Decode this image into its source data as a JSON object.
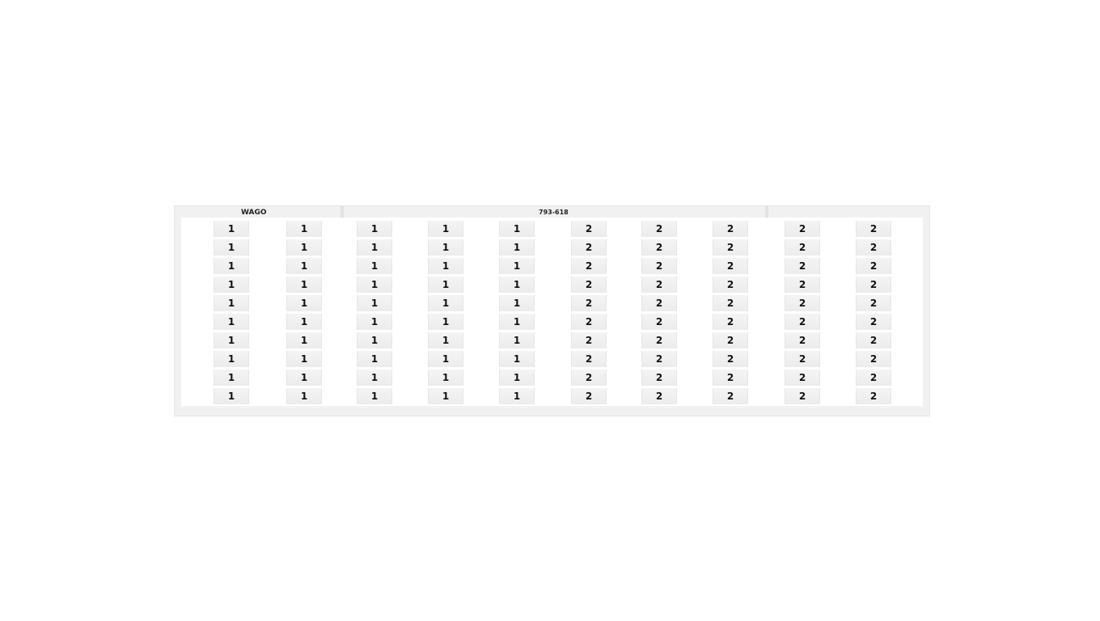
{
  "card": {
    "brand": "WAGO",
    "part_number": "793-618",
    "columns": [
      "1",
      "1",
      "1",
      "1",
      "1",
      "2",
      "2",
      "2",
      "2",
      "2"
    ],
    "rows_per_column": 10
  }
}
